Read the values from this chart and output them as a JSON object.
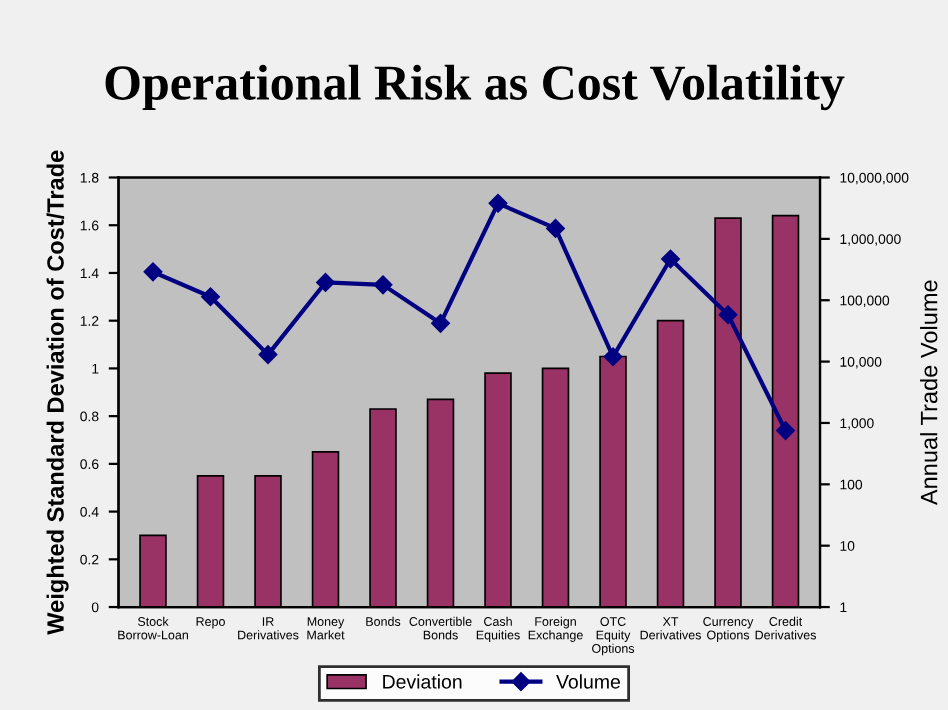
{
  "chart_data": {
    "type": "bar",
    "title": "Operational Risk as Cost Volatility",
    "ylabel": "Weighted Standard Deviation of Cost/Trade",
    "y2label": "Annual Trade Volume",
    "categories": [
      "Stock Borrow-Loan",
      "Repo",
      "IR Derivatives",
      "Money Market",
      "Bonds",
      "Convertible Bonds",
      "Cash Equities",
      "Foreign Exchange",
      "OTC Equity Options",
      "XT Derivatives",
      "Currency Options",
      "Credit Derivatives"
    ],
    "series": [
      {
        "name": "Deviation",
        "color": "#993366",
        "values": [
          0.3,
          0.55,
          0.55,
          0.65,
          0.83,
          0.87,
          0.98,
          1.0,
          1.05,
          1.2,
          1.63,
          1.64
        ]
      },
      {
        "name": "Volume",
        "type": "line",
        "axis": "y2",
        "color": "#000080",
        "marker": "diamond",
        "values": [
          290000,
          114000,
          13000,
          195000,
          178000,
          42000,
          3800000,
          1480000,
          12000,
          470000,
          58000,
          750
        ]
      }
    ],
    "ylim": [
      0,
      1.8
    ],
    "yticks": [
      0,
      0.2,
      0.4,
      0.6,
      0.8,
      1,
      1.2,
      1.4,
      1.6,
      1.8
    ],
    "log": "y2",
    "y2lim": [
      1,
      10000000
    ],
    "y2ticks": [
      1,
      10,
      100,
      {
        "value": 1000,
        "label": "1,000"
      },
      {
        "value": 10000,
        "label": "10,000"
      },
      {
        "value": 100000,
        "label": "100,000"
      },
      {
        "value": 1000000,
        "label": "1,000,000"
      },
      {
        "value": 10000000,
        "label": "10,000,000"
      }
    ],
    "legend": "bottom",
    "grid": false
  }
}
